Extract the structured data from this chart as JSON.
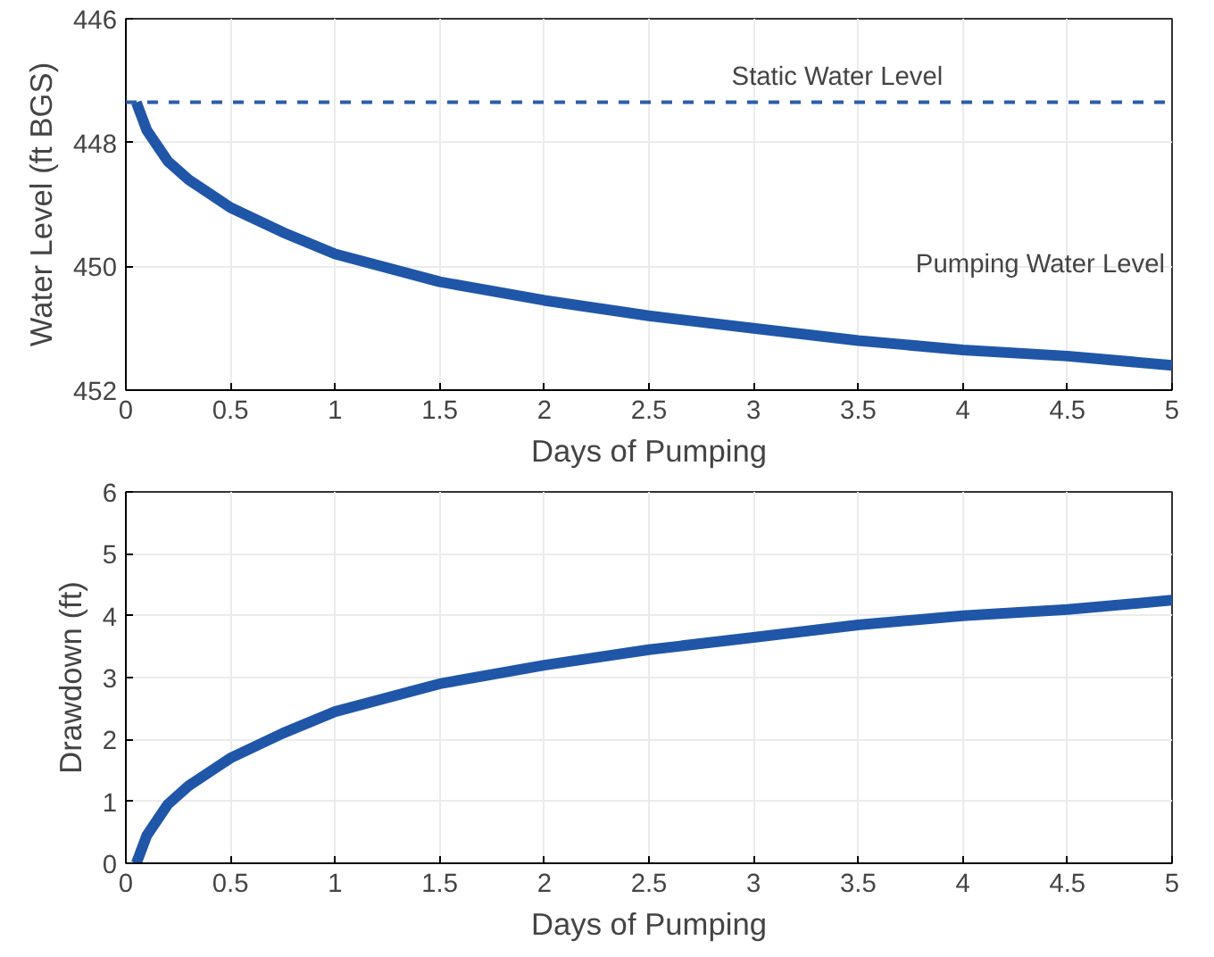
{
  "chart_data": [
    {
      "type": "line",
      "xlabel": "Days of Pumping",
      "ylabel": "Water Level (ft BGS)",
      "xlim": [
        0,
        5
      ],
      "ylim": [
        452,
        446
      ],
      "xticks": [
        0,
        0.5,
        1,
        1.5,
        2,
        2.5,
        3,
        3.5,
        4,
        4.5,
        5
      ],
      "yticks": [
        446,
        448,
        450,
        452
      ],
      "grid": true,
      "line_style": "solid",
      "ref_lines": [
        {
          "axis": "y",
          "value": 447.35,
          "label": "Static Water Level",
          "color": "#2a5caa",
          "line_style": "dashed"
        }
      ],
      "series": [
        {
          "name": "Pumping Water Level",
          "color": "#1f56a8",
          "x": [
            0.05,
            0.1,
            0.2,
            0.3,
            0.5,
            0.75,
            1,
            1.5,
            2,
            2.5,
            3,
            3.5,
            4,
            4.5,
            5
          ],
          "values": [
            447.35,
            447.8,
            448.3,
            448.6,
            449.05,
            449.45,
            449.8,
            450.25,
            450.55,
            450.8,
            451.0,
            451.2,
            451.35,
            451.45,
            451.6
          ]
        }
      ]
    },
    {
      "type": "line",
      "xlabel": "Days of Pumping",
      "ylabel": "Drawdown (ft)",
      "xlim": [
        0,
        5
      ],
      "ylim": [
        0,
        6
      ],
      "xticks": [
        0,
        0.5,
        1,
        1.5,
        2,
        2.5,
        3,
        3.5,
        4,
        4.5,
        5
      ],
      "yticks": [
        0,
        1,
        2,
        3,
        4,
        5,
        6
      ],
      "grid": true,
      "line_style": "solid",
      "series": [
        {
          "color": "#1f56a8",
          "x": [
            0.05,
            0.1,
            0.2,
            0.3,
            0.5,
            0.75,
            1,
            1.5,
            2,
            2.5,
            3,
            3.5,
            4,
            4.5,
            5
          ],
          "values": [
            0,
            0.45,
            0.95,
            1.25,
            1.7,
            2.1,
            2.45,
            2.9,
            3.2,
            3.45,
            3.65,
            3.85,
            4.0,
            4.1,
            4.25
          ]
        }
      ]
    }
  ]
}
